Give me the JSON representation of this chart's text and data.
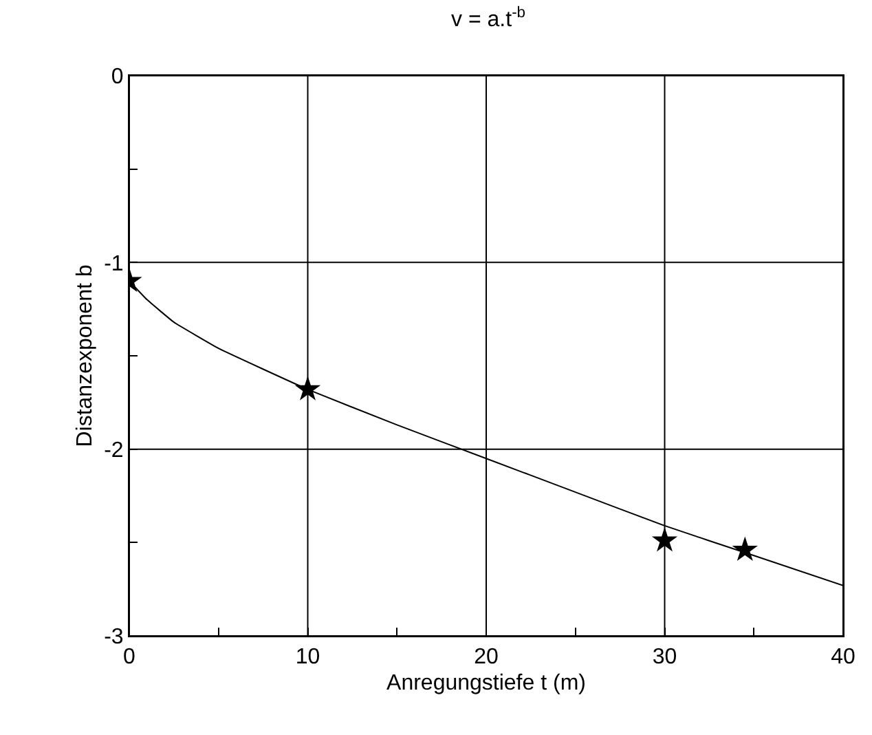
{
  "chart_data": {
    "type": "scatter",
    "title": "v = a.t$^{-b}$",
    "xlabel": "Anregungstiefe t (m)",
    "ylabel": "Distanzexponent b",
    "xlim": [
      0,
      40
    ],
    "ylim": [
      -3,
      0
    ],
    "xticks": [
      0,
      {
        "value": 5,
        "label": null
      },
      10,
      {
        "value": 15,
        "label": null
      },
      20,
      {
        "value": 25,
        "label": null
      },
      30,
      {
        "value": 35,
        "label": null
      },
      40
    ],
    "yticks": [
      -3,
      {
        "value": -2.5,
        "label": null
      },
      -2,
      {
        "value": -1.5,
        "label": null
      },
      -1,
      {
        "value": -0.5,
        "label": null
      },
      0
    ],
    "grid": true,
    "legend": false,
    "series": [
      {
        "color": "#000000",
        "marker": "star",
        "x": [
          0,
          10,
          30,
          34.5
        ],
        "values": [
          -1.1,
          -1.68,
          -2.49,
          -2.54
        ]
      },
      {
        "type": "line",
        "color": "#000000",
        "marker": "none",
        "line_style": "solid",
        "x": [
          0,
          1,
          2.5,
          5,
          10,
          15,
          20,
          25,
          30,
          35,
          40
        ],
        "values": [
          -1.1,
          -1.2,
          -1.32,
          -1.46,
          -1.68,
          -1.87,
          -2.05,
          -2.23,
          -2.41,
          -2.57,
          -2.73
        ]
      }
    ]
  }
}
